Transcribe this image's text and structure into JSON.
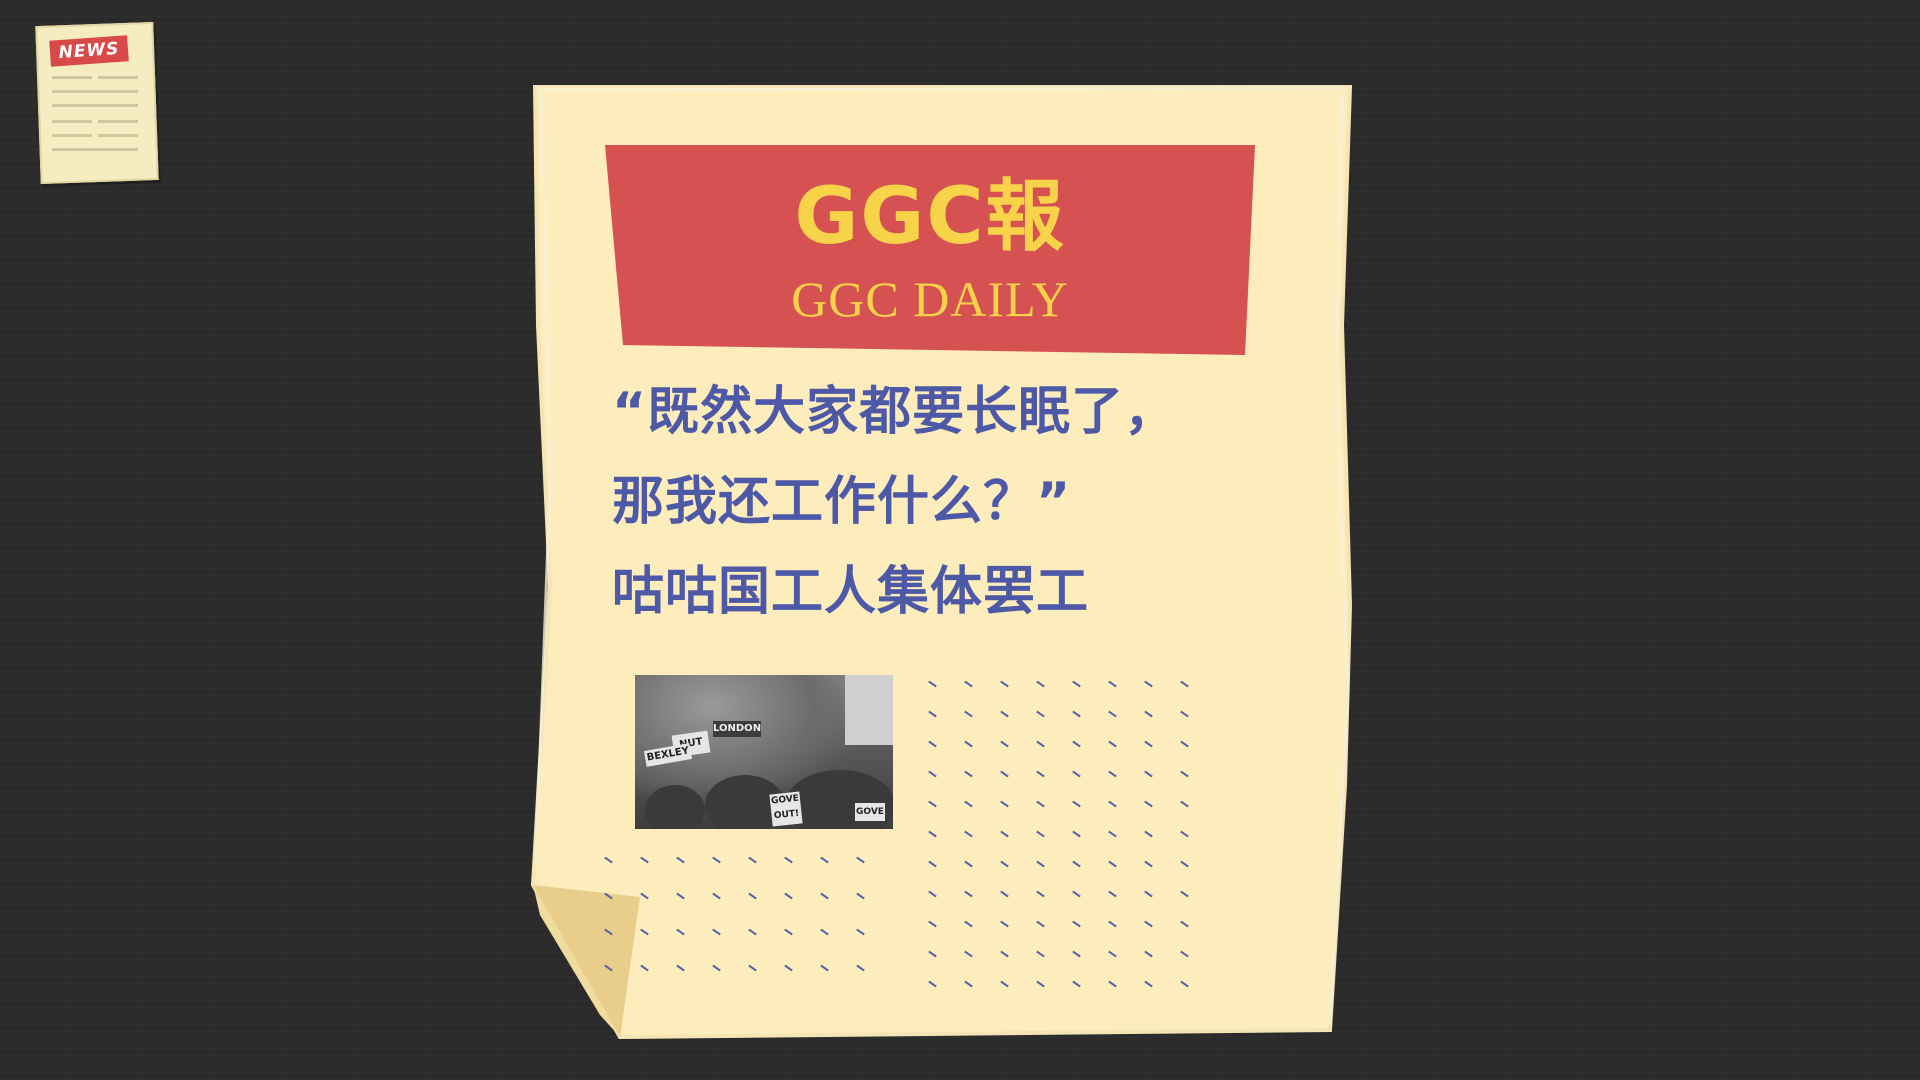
{
  "news_icon": {
    "label": "NEWS"
  },
  "masthead": {
    "title": "GGC報",
    "subtitle": "GGC DAILY"
  },
  "headline": {
    "line1": "“既然大家都要长眠了，",
    "line2": "那我还工作什么？”",
    "line3": "咕咕国工人集体罢工"
  },
  "photo": {
    "signs": [
      "NUT",
      "BEXLEY",
      "LONDON",
      "GOVE OUT!",
      "GOVE"
    ]
  },
  "colors": {
    "background": "#2b2b2b",
    "paper": "#fdedbc",
    "masthead_red": "#d65252",
    "masthead_text": "#f7d34a",
    "headline_blue": "#4d59a6"
  }
}
